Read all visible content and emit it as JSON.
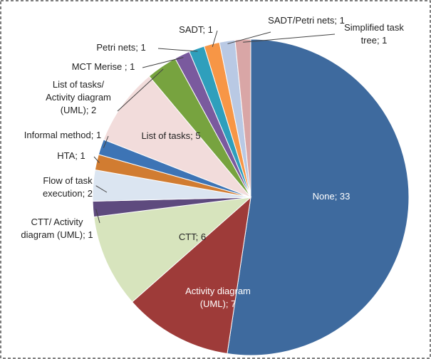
{
  "chart_data": {
    "type": "pie",
    "categories": [
      "None",
      "Activity diagram (UML)",
      "CTT",
      "CTT/ Activity diagram (UML)",
      "Flow of task execution",
      "HTA",
      "Informal method",
      "List of tasks",
      "List of tasks/ Activity diagram (UML)",
      "MCT Merise",
      "Petri nets",
      "SADT",
      "SADT/Petri nets",
      "Simplified task tree"
    ],
    "values": [
      33,
      7,
      6,
      1,
      2,
      1,
      1,
      5,
      2,
      1,
      1,
      1,
      1,
      1
    ],
    "value_labels": [
      "None; 33",
      "Activity diagram\n(UML); 7",
      "CTT; 6",
      "CTT/ Activity\ndiagram (UML); 1",
      "Flow of task\nexecution; 2",
      "HTA; 1",
      "Informal method; 1",
      "List of tasks; 5",
      "List of tasks/\nActivity diagram\n(UML); 2",
      "MCT Merise ; 1",
      "Petri nets; 1",
      "SADT; 1",
      "SADT/Petri nets; 1",
      "Simplified task\ntree; 1"
    ],
    "colors": [
      "#3e6a9e",
      "#9e3b39",
      "#d7e4bd",
      "#5e4a7e",
      "#dbe5f1",
      "#d17c31",
      "#3d74b5",
      "#f2dcdb",
      "#77a33f",
      "#7a5a9e",
      "#2f9fbc",
      "#f79646",
      "#b9c9e4",
      "#d9a6a6"
    ]
  }
}
